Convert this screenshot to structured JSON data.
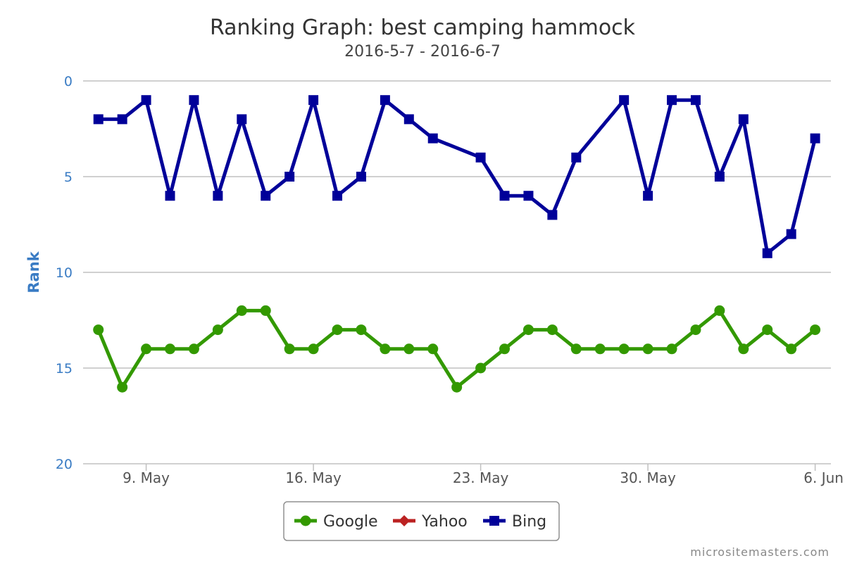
{
  "chart_data": {
    "type": "line",
    "title": "Ranking Graph: best camping hammock",
    "subtitle": "2016-5-7 - 2016-6-7",
    "ylabel": "Rank",
    "xlabel": "",
    "ylim": [
      0,
      20
    ],
    "y_reversed": true,
    "y_ticks": [
      "0",
      "5",
      "10",
      "15",
      "20"
    ],
    "x_range": [
      "2016-05-06",
      "2016-06-06"
    ],
    "x_ticks": [
      {
        "date": "2016-05-09",
        "label": "9. May"
      },
      {
        "date": "2016-05-16",
        "label": "16. May"
      },
      {
        "date": "2016-05-23",
        "label": "23. May"
      },
      {
        "date": "2016-05-30",
        "label": "30. May"
      },
      {
        "date": "2016-06-06",
        "label": "6. Jun"
      }
    ],
    "grid": true,
    "legend_position": "bottom-center",
    "series": [
      {
        "name": "Google",
        "color": "#339900",
        "marker": "circle",
        "points": [
          [
            "2016-05-07",
            13
          ],
          [
            "2016-05-08",
            16
          ],
          [
            "2016-05-09",
            14
          ],
          [
            "2016-05-10",
            14
          ],
          [
            "2016-05-11",
            14
          ],
          [
            "2016-05-12",
            13
          ],
          [
            "2016-05-13",
            12
          ],
          [
            "2016-05-14",
            12
          ],
          [
            "2016-05-15",
            14
          ],
          [
            "2016-05-16",
            14
          ],
          [
            "2016-05-17",
            13
          ],
          [
            "2016-05-18",
            13
          ],
          [
            "2016-05-19",
            14
          ],
          [
            "2016-05-20",
            14
          ],
          [
            "2016-05-21",
            14
          ],
          [
            "2016-05-22",
            16
          ],
          [
            "2016-05-23",
            15
          ],
          [
            "2016-05-24",
            14
          ],
          [
            "2016-05-25",
            13
          ],
          [
            "2016-05-26",
            13
          ],
          [
            "2016-05-27",
            14
          ],
          [
            "2016-05-28",
            14
          ],
          [
            "2016-05-29",
            14
          ],
          [
            "2016-05-30",
            14
          ],
          [
            "2016-05-31",
            14
          ],
          [
            "2016-06-01",
            13
          ],
          [
            "2016-06-02",
            12
          ],
          [
            "2016-06-03",
            14
          ],
          [
            "2016-06-04",
            13
          ],
          [
            "2016-06-05",
            14
          ],
          [
            "2016-06-06",
            13
          ]
        ]
      },
      {
        "name": "Yahoo",
        "color": "#bb2222",
        "marker": "diamond",
        "points": []
      },
      {
        "name": "Bing",
        "color": "#000099",
        "marker": "square",
        "points": [
          [
            "2016-05-07",
            2
          ],
          [
            "2016-05-08",
            2
          ],
          [
            "2016-05-09",
            1
          ],
          [
            "2016-05-10",
            6
          ],
          [
            "2016-05-11",
            1
          ],
          [
            "2016-05-12",
            6
          ],
          [
            "2016-05-13",
            2
          ],
          [
            "2016-05-14",
            6
          ],
          [
            "2016-05-15",
            5
          ],
          [
            "2016-05-16",
            1
          ],
          [
            "2016-05-17",
            6
          ],
          [
            "2016-05-18",
            5
          ],
          [
            "2016-05-19",
            1
          ],
          [
            "2016-05-20",
            2
          ],
          [
            "2016-05-21",
            3
          ],
          [
            "2016-05-23",
            4
          ],
          [
            "2016-05-24",
            6
          ],
          [
            "2016-05-25",
            6
          ],
          [
            "2016-05-26",
            7
          ],
          [
            "2016-05-27",
            4
          ],
          [
            "2016-05-29",
            1
          ],
          [
            "2016-05-30",
            6
          ],
          [
            "2016-05-31",
            1
          ],
          [
            "2016-06-01",
            1
          ],
          [
            "2016-06-02",
            5
          ],
          [
            "2016-06-03",
            2
          ],
          [
            "2016-06-04",
            9
          ],
          [
            "2016-06-05",
            8
          ],
          [
            "2016-06-06",
            3
          ]
        ]
      }
    ]
  },
  "credit": "micrositemasters.com",
  "colors": {
    "grid": "#c0c0c0",
    "axis_labels": "#3a7cc4",
    "legend_border": "#909090"
  }
}
